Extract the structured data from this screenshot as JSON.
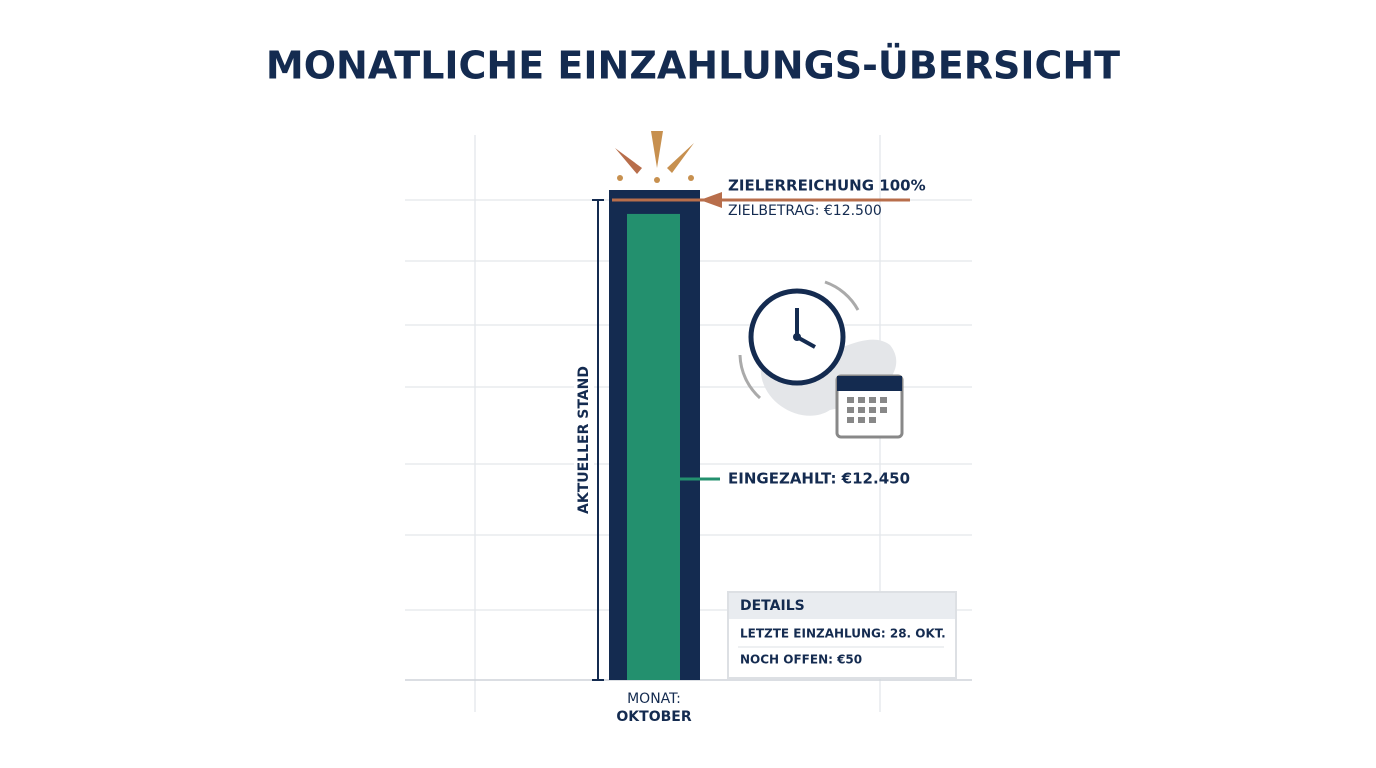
{
  "chart_data": {
    "type": "bar",
    "title": "MONATLICHE EINZAHLUNGS-ÜBERSICHT",
    "y_label": "AKTUELLER STAND",
    "x_label": "MONAT:",
    "categories": [
      "OKTOBER"
    ],
    "values": [
      12450
    ],
    "value_labels": [
      "EINGEZAHLT: €12.450"
    ],
    "color": "#23906e",
    "target": 12500,
    "target_label": "ZIELBETRAG: €12.500",
    "target_color": "#142b50",
    "goal_label": "ZIELERREICHUNG 100%",
    "ylim": [
      0,
      12500
    ],
    "details": {
      "title": "DETAILS",
      "rows": [
        "LETZTE EINZAHLUNG: 28. OKT.",
        "NOCH OFFEN: €50"
      ]
    }
  }
}
